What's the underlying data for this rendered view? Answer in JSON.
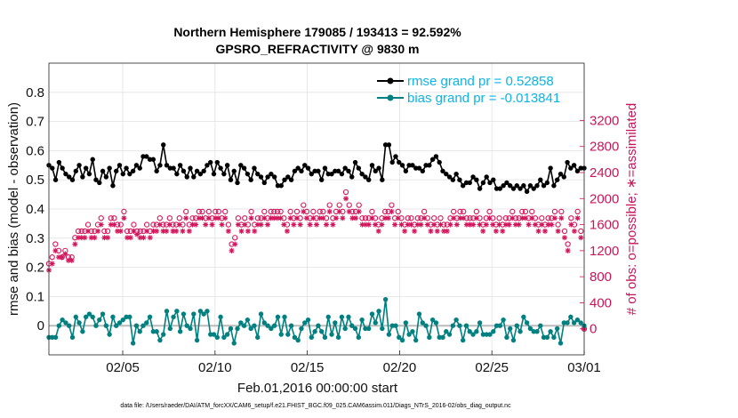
{
  "chart_data": {
    "type": "line",
    "title_line1": "Northern Hemisphere 179085 / 193413 = 92.592%",
    "title_line2": "GPSRO_REFRACTIVITY @ 9830 m",
    "xlabel": "Feb.01,2016 00:00:00 start",
    "ylabel": "rmse and bias (model - observation)",
    "ylabel_right": "# of obs: o=possible; ∗=assimilated",
    "footnote": "data file: /Users/raeder/DAI/ATM_forcXX/CAM6_setup/f.e21.FHIST_BGC.f09_025.CAM6assim.011/Diags_NTrS_2016-02/obs_diag_output.nc",
    "xlim": [
      1,
      30
    ],
    "ylim": [
      -0.1,
      0.9
    ],
    "ylim_right": [
      -400,
      4080
    ],
    "x_ticks": [
      5,
      10,
      15,
      20,
      25,
      30
    ],
    "x_tick_labels": [
      "02/05",
      "02/10",
      "02/15",
      "02/20",
      "02/25",
      "03/01"
    ],
    "y_ticks": [
      0,
      0.1,
      0.2,
      0.3,
      0.4,
      0.5,
      0.6,
      0.7,
      0.8
    ],
    "y_tick_labels": [
      "0",
      "0.1",
      "0.2",
      "0.3",
      "0.4",
      "0.5",
      "0.6",
      "0.7",
      "0.8"
    ],
    "y_right_ticks": [
      0,
      400,
      800,
      1200,
      1600,
      2000,
      2400,
      2800,
      3200
    ],
    "y_right_tick_labels": [
      "0",
      "400",
      "800",
      "1200",
      "1600",
      "2000",
      "2400",
      "2800",
      "3200"
    ],
    "colors": {
      "rmse": "#000000",
      "bias": "#008080",
      "obs": "#d4145a",
      "legend_text": "#0ab4e8",
      "zero_line": "#bbbbbb"
    },
    "series": [
      {
        "name": "rmse grand pr = 0.52858",
        "values": [
          0.55,
          0.54,
          0.5,
          0.56,
          0.54,
          0.52,
          0.51,
          0.5,
          0.53,
          0.55,
          0.51,
          0.54,
          0.52,
          0.57,
          0.5,
          0.49,
          0.53,
          0.51,
          0.54,
          0.48,
          0.53,
          0.55,
          0.52,
          0.54,
          0.52,
          0.53,
          0.55,
          0.54,
          0.58,
          0.58,
          0.57,
          0.57,
          0.53,
          0.55,
          0.62,
          0.55,
          0.54,
          0.54,
          0.52,
          0.55,
          0.53,
          0.51,
          0.54,
          0.51,
          0.53,
          0.52,
          0.53,
          0.55,
          0.56,
          0.52,
          0.56,
          0.54,
          0.52,
          0.55,
          0.5,
          0.53,
          0.49,
          0.55,
          0.54,
          0.52,
          0.5,
          0.54,
          0.52,
          0.51,
          0.49,
          0.51,
          0.52,
          0.51,
          0.48,
          0.48,
          0.5,
          0.51,
          0.5,
          0.53,
          0.54,
          0.53,
          0.55,
          0.54,
          0.52,
          0.53,
          0.53,
          0.5,
          0.54,
          0.52,
          0.52,
          0.53,
          0.53,
          0.52,
          0.54,
          0.53,
          0.51,
          0.56,
          0.54,
          0.52,
          0.51,
          0.5,
          0.55,
          0.53,
          0.54,
          0.5,
          0.62,
          0.62,
          0.56,
          0.58,
          0.56,
          0.55,
          0.53,
          0.55,
          0.55,
          0.54,
          0.54,
          0.53,
          0.55,
          0.55,
          0.57,
          0.58,
          0.56,
          0.53,
          0.52,
          0.51,
          0.5,
          0.52,
          0.5,
          0.48,
          0.49,
          0.49,
          0.51,
          0.5,
          0.47,
          0.49,
          0.51,
          0.49,
          0.5,
          0.47,
          0.47,
          0.48,
          0.49,
          0.48,
          0.47,
          0.48,
          0.47,
          0.48,
          0.46,
          0.48,
          0.47,
          0.48,
          0.5,
          0.48,
          0.49,
          0.54,
          0.48,
          0.5,
          0.52,
          0.51,
          0.56,
          0.54,
          0.55,
          0.53,
          0.54,
          0.54
        ]
      },
      {
        "name": "bias grand pr = -0.013841",
        "values": [
          -0.04,
          -0.04,
          -0.04,
          0.0,
          0.02,
          0.01,
          0.0,
          -0.04,
          0.03,
          0.01,
          -0.02,
          0.03,
          0.04,
          0.03,
          0.0,
          0.02,
          0.04,
          0.0,
          -0.03,
          0.03,
          0.0,
          0.01,
          0.02,
          0.03,
          0.03,
          -0.06,
          0.0,
          -0.02,
          0.0,
          0.01,
          0.03,
          -0.02,
          -0.02,
          -0.05,
          -0.03,
          0.05,
          -0.01,
          0.03,
          0.05,
          -0.02,
          0.04,
          0.0,
          -0.01,
          0.04,
          -0.05,
          0.05,
          0.04,
          0.05,
          -0.03,
          -0.03,
          -0.04,
          0.03,
          -0.04,
          -0.03,
          -0.01,
          -0.06,
          -0.01,
          0.01,
          0.0,
          0.02,
          -0.01,
          0.0,
          -0.04,
          0.04,
          0.01,
          0.0,
          -0.01,
          0.0,
          0.03,
          -0.03,
          0.03,
          -0.03,
          0.0,
          -0.04,
          -0.05,
          -0.01,
          0.01,
          0.02,
          -0.04,
          -0.02,
          0.0,
          -0.02,
          -0.04,
          0.03,
          -0.03,
          0.01,
          -0.04,
          0.03,
          -0.01,
          0.03,
          0.0,
          -0.01,
          -0.04,
          0.02,
          -0.01,
          -0.01,
          0.04,
          0.01,
          0.05,
          -0.01,
          0.09,
          -0.03,
          0.0,
          0.0,
          -0.04,
          -0.05,
          0.01,
          -0.03,
          -0.02,
          -0.05,
          0.04,
          0.01,
          0.0,
          -0.04,
          0.02,
          0.01,
          -0.04,
          -0.04,
          -0.02,
          -0.03,
          0.0,
          0.02,
          0.0,
          -0.05,
          0.0,
          -0.02,
          -0.03,
          -0.02,
          0.01,
          -0.03,
          -0.03,
          -0.03,
          -0.02,
          0.0,
          0.0,
          0.02,
          -0.04,
          -0.01,
          -0.05,
          0.0,
          -0.02,
          0.03,
          0.01,
          -0.01,
          -0.02,
          -0.02,
          0.0,
          -0.04,
          -0.04,
          -0.02,
          -0.04,
          -0.01,
          -0.06,
          0.01,
          0.01,
          0.03,
          0.01,
          0.02,
          0.01,
          0.0
        ]
      }
    ],
    "obs_possible": [
      1000,
      1100,
      1300,
      1200,
      1100,
      1200,
      1100,
      1100,
      1400,
      1500,
      1500,
      1500,
      1600,
      1500,
      1500,
      1600,
      1700,
      1500,
      1500,
      1700,
      1700,
      1600,
      1600,
      1800,
      1500,
      1500,
      1600,
      1500,
      1500,
      1500,
      1600,
      1500,
      1600,
      1600,
      1700,
      1600,
      1600,
      1700,
      1600,
      1600,
      1700,
      1600,
      1800,
      1600,
      1700,
      1700,
      1800,
      1800,
      1700,
      1800,
      1700,
      1800,
      1800,
      1700,
      1800,
      1600,
      1300,
      1400,
      1700,
      1600,
      1700,
      1600,
      1800,
      1600,
      1700,
      1700,
      1800,
      1700,
      1800,
      1800,
      1800,
      1800,
      1700,
      1600,
      1800,
      1700,
      1800,
      1700,
      1900,
      1800,
      1700,
      1800,
      1700,
      1800,
      1800,
      1700,
      1900,
      1700,
      1800,
      1900,
      1800,
      2100,
      1900,
      1800,
      1800,
      1900,
      1700,
      1700,
      1700,
      1800,
      1700,
      1600,
      1700,
      1800,
      1800,
      1900,
      1700,
      1800,
      1700,
      1600,
      1700,
      1700,
      1600,
      1700,
      1700,
      1800,
      1700,
      1600,
      1700,
      1600,
      1700,
      1600,
      1600,
      1700,
      1800,
      1700,
      1800,
      1800,
      1700,
      1700,
      1700,
      1800,
      1700,
      1600,
      1700,
      1800,
      1700,
      1600,
      1700,
      1600,
      1700,
      1700,
      1800,
      1700,
      1700,
      1800,
      1800,
      1700,
      1800,
      1700,
      1600,
      1700,
      1600,
      1700,
      1700,
      1800,
      1600,
      1800,
      1500,
      1300,
      1700,
      1600,
      1800,
      1500,
      0
    ],
    "obs_assimilated": [
      900,
      1000,
      1200,
      1100,
      1100,
      1150,
      1050,
      1050,
      1300,
      1400,
      1400,
      1400,
      1500,
      1400,
      1400,
      1500,
      1600,
      1400,
      1400,
      1600,
      1600,
      1500,
      1500,
      1700,
      1400,
      1400,
      1500,
      1450,
      1400,
      1400,
      1500,
      1400,
      1500,
      1500,
      1600,
      1500,
      1500,
      1600,
      1500,
      1500,
      1600,
      1500,
      1700,
      1500,
      1600,
      1600,
      1700,
      1700,
      1600,
      1700,
      1600,
      1700,
      1700,
      1600,
      1700,
      1500,
      1200,
      1300,
      1600,
      1500,
      1600,
      1500,
      1700,
      1500,
      1600,
      1600,
      1700,
      1600,
      1700,
      1700,
      1700,
      1700,
      1600,
      1500,
      1700,
      1600,
      1700,
      1600,
      1800,
      1700,
      1600,
      1700,
      1600,
      1700,
      1700,
      1600,
      1800,
      1600,
      1700,
      1800,
      1700,
      2000,
      1800,
      1700,
      1700,
      1800,
      1600,
      1600,
      1600,
      1700,
      1600,
      1500,
      1600,
      1700,
      1700,
      1800,
      1600,
      1700,
      1600,
      1500,
      1600,
      1600,
      1500,
      1600,
      1600,
      1700,
      1600,
      1500,
      1600,
      1500,
      1600,
      1500,
      1500,
      1600,
      1700,
      1600,
      1700,
      1700,
      1600,
      1600,
      1600,
      1700,
      1600,
      1500,
      1600,
      1700,
      1600,
      1500,
      1600,
      1500,
      1600,
      1600,
      1700,
      1600,
      1600,
      1700,
      1700,
      1600,
      1700,
      1600,
      1500,
      1600,
      1500,
      1600,
      1600,
      1700,
      1500,
      1700,
      1400,
      1200,
      1600,
      1500,
      1700,
      1400,
      0
    ]
  }
}
